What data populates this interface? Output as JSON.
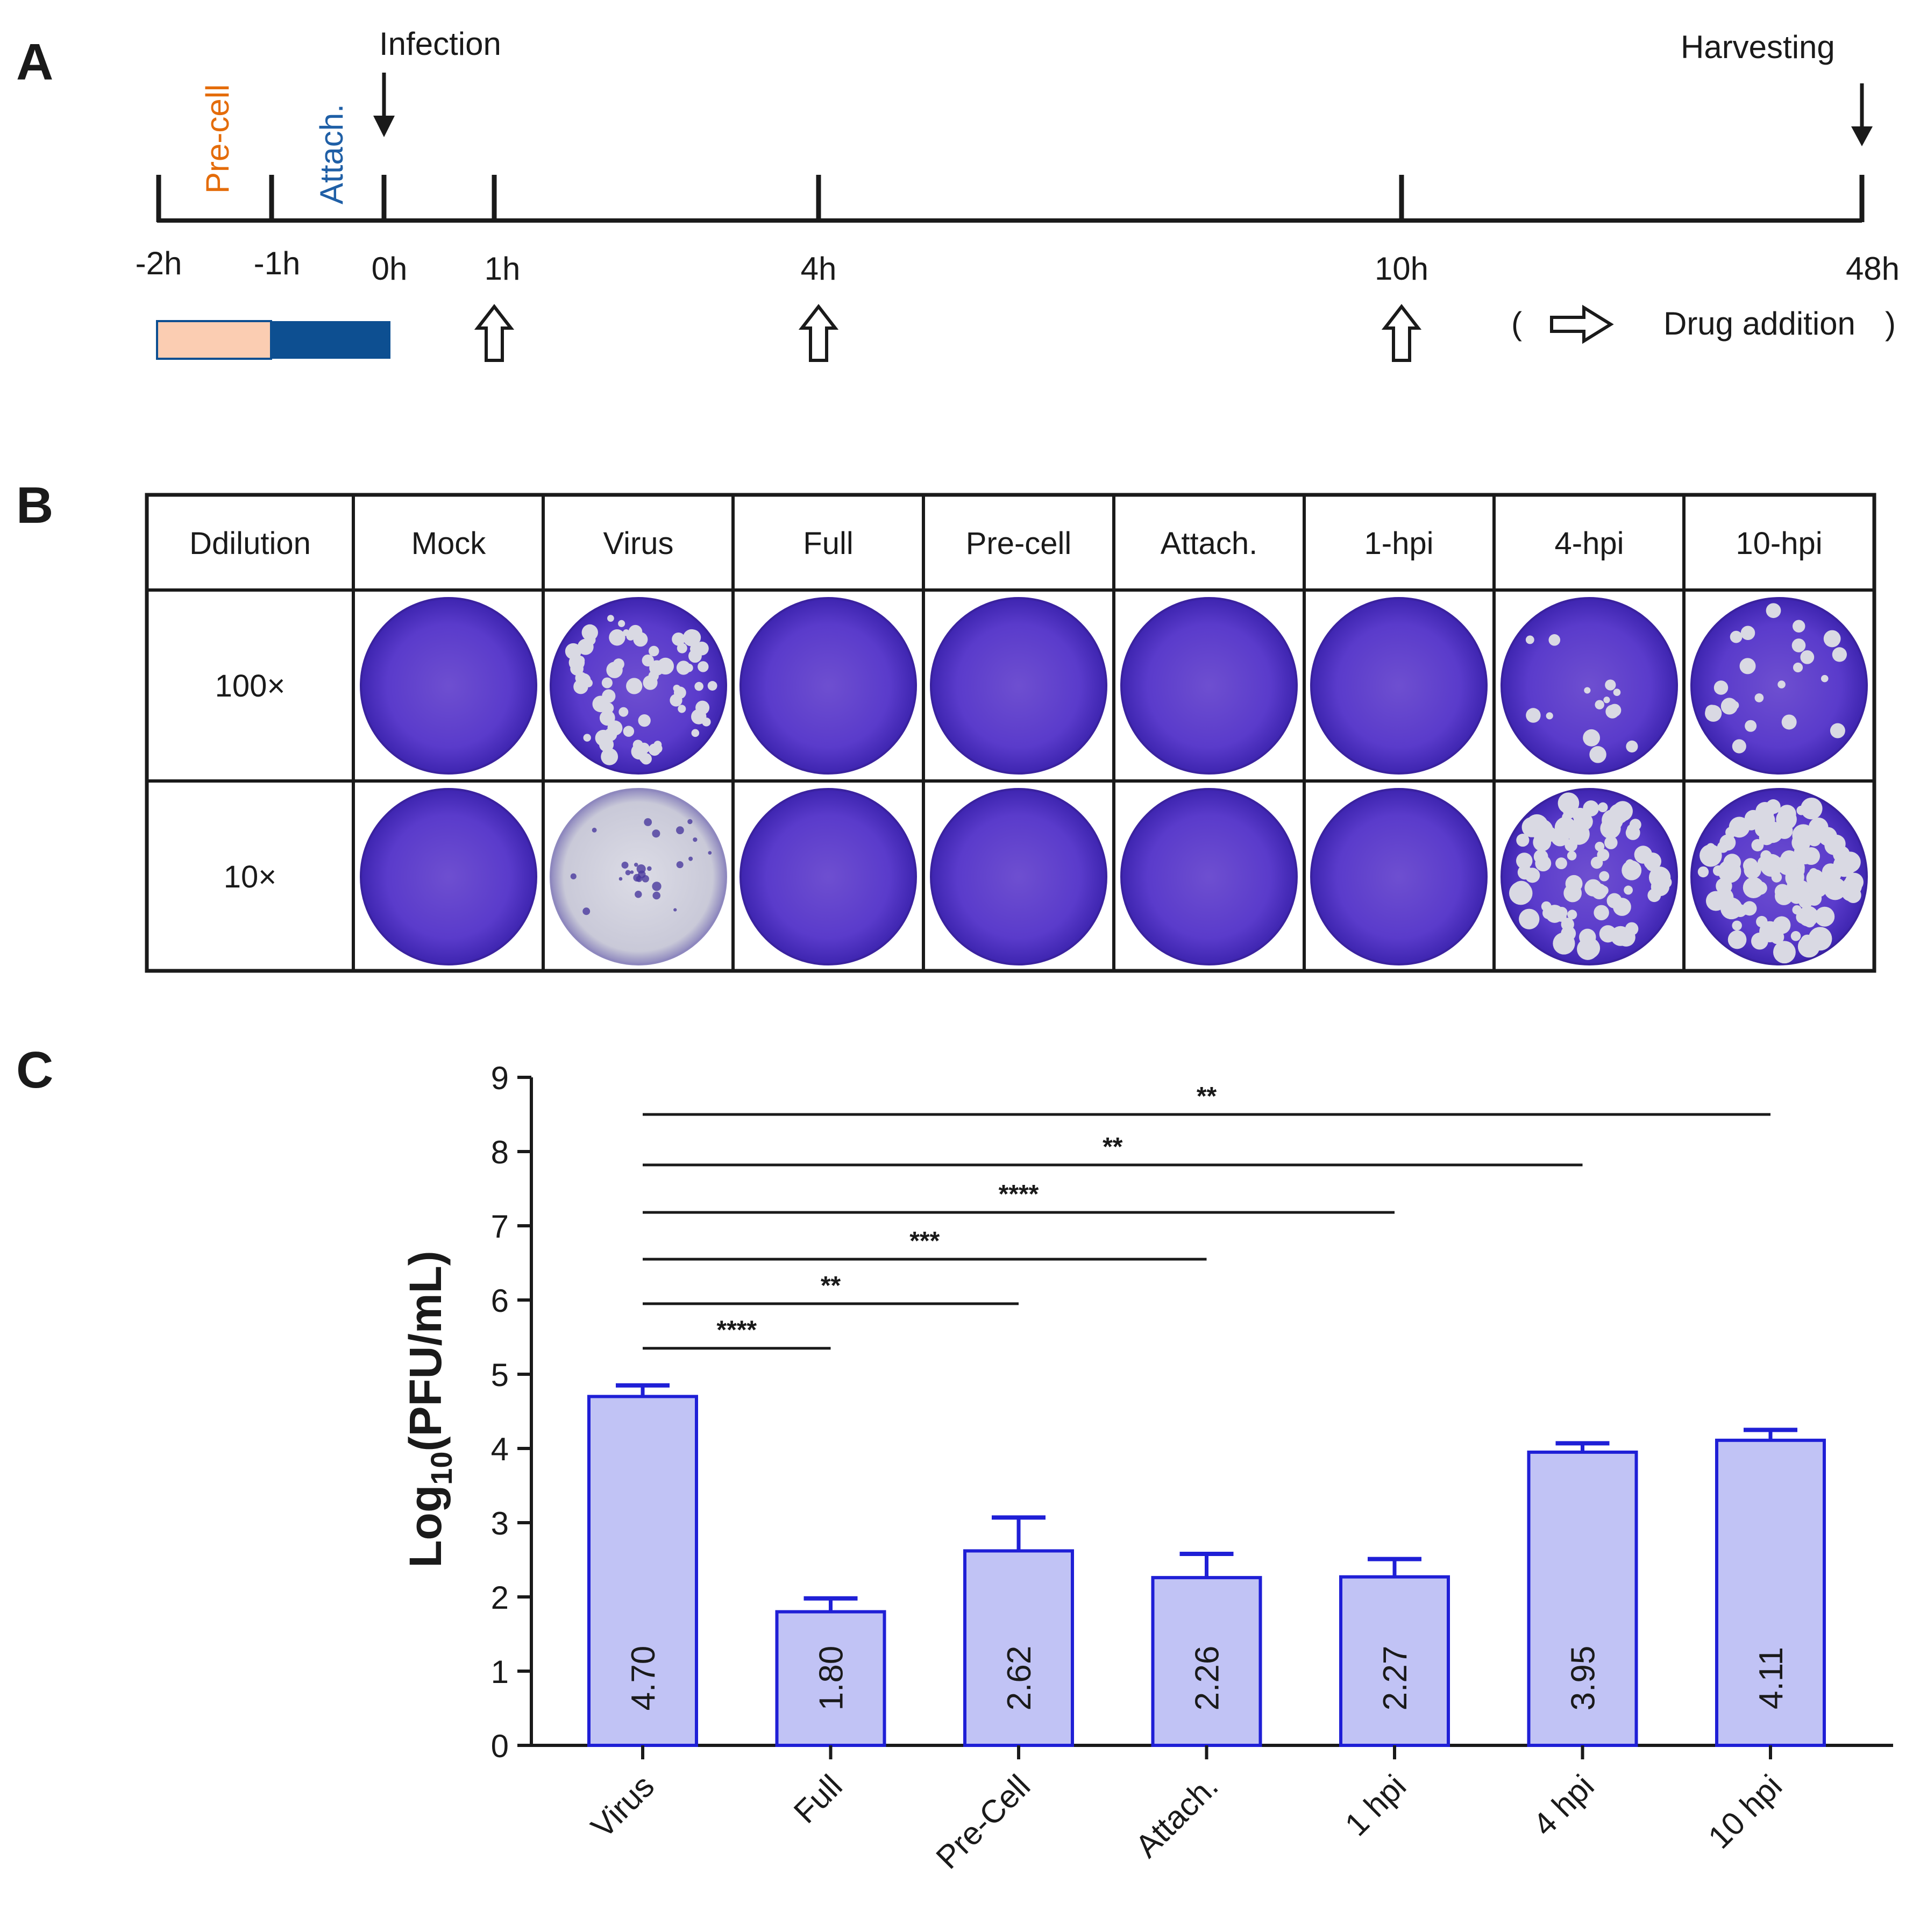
{
  "panels": {
    "a": "A",
    "b": "B",
    "c": "C"
  },
  "timeline": {
    "infection": "Infection",
    "harvesting": "Harvesting",
    "precell": "Pre-cell",
    "attach": "Attach.",
    "times": [
      "-2h",
      "-1h",
      "0h",
      "1h",
      "4h",
      "10h",
      "48h"
    ],
    "legend_open": "(",
    "legend_text": "Drug addition",
    "legend_close": ")",
    "colors": {
      "precell": "#E46C0A",
      "attach": "#1F5FA6",
      "precell_box": "#FBCDB2",
      "attach_box": "#0D4F91"
    }
  },
  "plaque_table": {
    "columns": [
      "Ddilution",
      "Mock",
      "Virus",
      "Full",
      "Pre-cell",
      "Attach.",
      "1-hpi",
      "4-hpi",
      "10-hpi"
    ],
    "rows": [
      "100×",
      "10×"
    ]
  },
  "chart_data": {
    "type": "bar",
    "categories": [
      "Virus",
      "Full",
      "Pre-Cell",
      "Attach.",
      "1 hpi",
      "4 hpi",
      "10 hpi"
    ],
    "values": [
      4.7,
      1.8,
      2.62,
      2.26,
      2.27,
      3.95,
      4.11
    ],
    "value_labels": [
      "4.70",
      "1.80",
      "2.62",
      "2.26",
      "2.27",
      "3.95",
      "4.11"
    ],
    "errors": [
      0.15,
      0.18,
      0.45,
      0.32,
      0.24,
      0.12,
      0.14
    ],
    "ylabel_main": "Log",
    "ylabel_sub": "10",
    "ylabel_rest": "(PFU/mL)",
    "ylim": [
      0,
      9
    ],
    "yticks": [
      "0",
      "1",
      "2",
      "3",
      "4",
      "5",
      "6",
      "7",
      "8",
      "9"
    ],
    "significance": [
      {
        "from": 0,
        "to": 1,
        "y": 5.35,
        "label": "****"
      },
      {
        "from": 0,
        "to": 2,
        "y": 5.95,
        "label": "**"
      },
      {
        "from": 0,
        "to": 3,
        "y": 6.55,
        "label": "***"
      },
      {
        "from": 0,
        "to": 4,
        "y": 7.18,
        "label": "****"
      },
      {
        "from": 0,
        "to": 5,
        "y": 7.82,
        "label": "**"
      },
      {
        "from": 0,
        "to": 6,
        "y": 8.5,
        "label": "**"
      }
    ],
    "bar_color": "#C1C3F5",
    "edge_color": "#1F1FD6"
  }
}
